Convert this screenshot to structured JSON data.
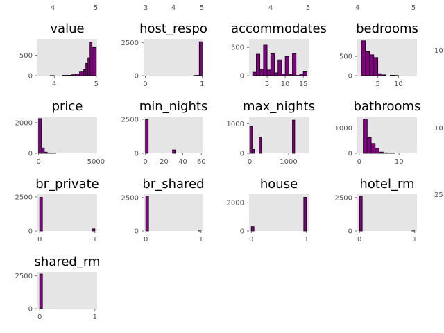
{
  "colors": {
    "bar": "#800080",
    "bar_edge": "#000000",
    "plot_bg": "#e5e5e5",
    "tick": "#555555"
  },
  "top_strip": {
    "ticks": [
      {
        "panel": 0,
        "label": "4"
      },
      {
        "panel": 0,
        "label": "5"
      },
      {
        "panel": 1,
        "label": "3"
      },
      {
        "panel": 1,
        "label": "4"
      },
      {
        "panel": 1,
        "label": "5"
      },
      {
        "panel": 2,
        "label": "4"
      },
      {
        "panel": 2,
        "label": "5"
      },
      {
        "panel": 3,
        "label": "4"
      },
      {
        "panel": 3,
        "label": "5"
      }
    ]
  },
  "side_strip": {
    "labels": [
      "10",
      "10",
      "25"
    ]
  },
  "chart_data": [
    {
      "type": "bar",
      "title": "value",
      "xlim": [
        3.6,
        5.02
      ],
      "ylim": [
        0,
        900
      ],
      "xticks": [
        4,
        5
      ],
      "yticks": [
        0,
        500
      ],
      "grid": false,
      "bins": [
        [
          3.9,
          3.95,
          3
        ],
        [
          3.95,
          4.0,
          2
        ],
        [
          4.2,
          4.3,
          8
        ],
        [
          4.3,
          4.4,
          10
        ],
        [
          4.4,
          4.5,
          22
        ],
        [
          4.5,
          4.6,
          40
        ],
        [
          4.6,
          4.7,
          90
        ],
        [
          4.7,
          4.75,
          150
        ],
        [
          4.75,
          4.8,
          300
        ],
        [
          4.8,
          4.85,
          440
        ],
        [
          4.85,
          4.9,
          820
        ],
        [
          4.9,
          5.0,
          690
        ]
      ]
    },
    {
      "type": "bar",
      "title": "host_respo",
      "xlim": [
        -0.03,
        1.02
      ],
      "ylim": [
        0,
        2800
      ],
      "xticks": [
        0,
        1
      ],
      "yticks": [
        0,
        2500
      ],
      "grid": false,
      "bins": [
        [
          0.85,
          0.9,
          15
        ],
        [
          0.9,
          0.95,
          25
        ],
        [
          0.95,
          1.0,
          2580
        ]
      ]
    },
    {
      "type": "bar",
      "title": "accommodates",
      "xlim": [
        0,
        16.5
      ],
      "ylim": [
        0,
        650
      ],
      "xticks": [
        5,
        10,
        15
      ],
      "yticks": [
        0,
        500
      ],
      "grid": false,
      "bins": [
        [
          1,
          2,
          60
        ],
        [
          2,
          3,
          380
        ],
        [
          3,
          4,
          110
        ],
        [
          4,
          5,
          540
        ],
        [
          5,
          6,
          100
        ],
        [
          6,
          7,
          390
        ],
        [
          7,
          8,
          50
        ],
        [
          8,
          9,
          280
        ],
        [
          9,
          10,
          30
        ],
        [
          10,
          11,
          340
        ],
        [
          11,
          12,
          20
        ],
        [
          12,
          13,
          390
        ],
        [
          13,
          14,
          5
        ],
        [
          14,
          15,
          30
        ],
        [
          15,
          16,
          70
        ]
      ]
    },
    {
      "type": "bar",
      "title": "bedrooms",
      "xlim": [
        0,
        14.5
      ],
      "ylim": [
        0,
        950
      ],
      "xticks": [
        5,
        10
      ],
      "yticks": [
        0,
        500
      ],
      "grid": false,
      "bins": [
        [
          1,
          2,
          900
        ],
        [
          2,
          3,
          620
        ],
        [
          3,
          4,
          540
        ],
        [
          4,
          5,
          470
        ],
        [
          5,
          6,
          50
        ],
        [
          6,
          7,
          20
        ],
        [
          8,
          9,
          10
        ],
        [
          9,
          10,
          5
        ]
      ]
    },
    {
      "type": "bar",
      "title": "price",
      "xlim": [
        -100,
        5100
      ],
      "ylim": [
        0,
        2400
      ],
      "xticks": [
        0,
        5000
      ],
      "yticks": [
        0,
        2000
      ],
      "grid": false,
      "bins": [
        [
          0,
          250,
          2270
        ],
        [
          250,
          500,
          350
        ],
        [
          500,
          750,
          80
        ],
        [
          750,
          1000,
          30
        ],
        [
          1000,
          1250,
          10
        ],
        [
          1250,
          1500,
          5
        ]
      ]
    },
    {
      "type": "bar",
      "title": "min_nights",
      "xlim": [
        -2,
        62
      ],
      "ylim": [
        0,
        2700
      ],
      "xticks": [
        0,
        20,
        40,
        60
      ],
      "yticks": [
        0,
        2500
      ],
      "grid": false,
      "bins": [
        [
          0,
          3,
          2480
        ],
        [
          29,
          32,
          250
        ]
      ]
    },
    {
      "type": "bar",
      "title": "max_nights",
      "xlim": [
        -20,
        1520
      ],
      "ylim": [
        0,
        1250
      ],
      "xticks": [
        0,
        1000
      ],
      "yticks": [
        0,
        1000
      ],
      "grid": false,
      "bins": [
        [
          0,
          60,
          920
        ],
        [
          60,
          120,
          130
        ],
        [
          240,
          300,
          530
        ],
        [
          1100,
          1160,
          1130
        ]
      ]
    },
    {
      "type": "bar",
      "title": "bathrooms",
      "xlim": [
        -0.5,
        14.5
      ],
      "ylim": [
        0,
        1450
      ],
      "xticks": [
        0,
        10
      ],
      "yticks": [
        0,
        1000
      ],
      "grid": false,
      "bins": [
        [
          1,
          2,
          1350
        ],
        [
          2,
          3,
          620
        ],
        [
          3,
          4,
          390
        ],
        [
          4,
          5,
          200
        ],
        [
          5,
          6,
          50
        ],
        [
          6,
          7,
          20
        ],
        [
          7,
          8,
          10
        ],
        [
          8,
          9,
          5
        ]
      ]
    },
    {
      "type": "bar",
      "title": "br_private",
      "xlim": [
        -0.04,
        1.04
      ],
      "ylim": [
        0,
        2700
      ],
      "xticks": [
        0,
        1
      ],
      "yticks": [
        0,
        2500
      ],
      "grid": false,
      "bins": [
        [
          0,
          0.05,
          2470
        ],
        [
          0.95,
          1.0,
          160
        ]
      ]
    },
    {
      "type": "bar",
      "title": "br_shared",
      "xlim": [
        -0.04,
        1.04
      ],
      "ylim": [
        0,
        2750
      ],
      "xticks": [
        0,
        1
      ],
      "yticks": [
        0,
        2500
      ],
      "grid": false,
      "bins": [
        [
          0,
          0.05,
          2620
        ],
        [
          0.95,
          1.0,
          8
        ]
      ]
    },
    {
      "type": "bar",
      "title": "house",
      "xlim": [
        -0.04,
        1.04
      ],
      "ylim": [
        0,
        2600
      ],
      "xticks": [
        0,
        1
      ],
      "yticks": [
        0,
        2000
      ],
      "grid": false,
      "bins": [
        [
          0,
          0.05,
          310
        ],
        [
          0.95,
          1.0,
          2380
        ]
      ]
    },
    {
      "type": "bar",
      "title": "hotel_rm",
      "xlim": [
        -0.04,
        1.04
      ],
      "ylim": [
        0,
        2750
      ],
      "xticks": [
        0,
        1
      ],
      "yticks": [
        0,
        2500
      ],
      "grid": false,
      "bins": [
        [
          0,
          0.05,
          2600
        ],
        [
          0.95,
          1.0,
          10
        ]
      ]
    },
    {
      "type": "bar",
      "title": "shared_rm",
      "xlim": [
        -0.04,
        1.04
      ],
      "ylim": [
        0,
        2800
      ],
      "xticks": [
        0,
        1
      ],
      "yticks": [
        0,
        2500
      ],
      "grid": false,
      "bins": [
        [
          0,
          0.05,
          2640
        ]
      ]
    }
  ]
}
